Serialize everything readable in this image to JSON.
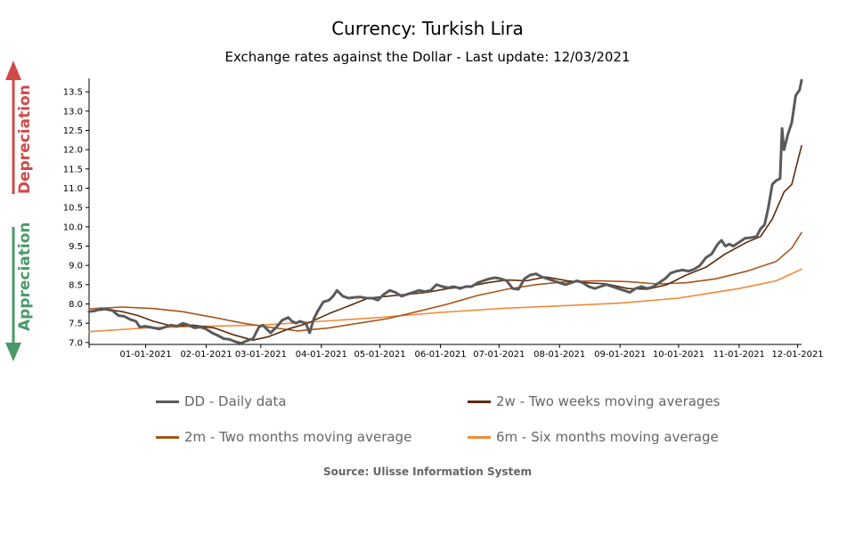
{
  "chart_data": {
    "type": "line",
    "title": "Currency: Turkish Lira",
    "subtitle": "Exchange rates against the Dollar - Last update: 12/03/2021",
    "xlabel": "",
    "ylabel": "",
    "ylim": [
      6.95,
      13.85
    ],
    "y_ticks": [
      "7.0",
      "7.5",
      "8.0",
      "8.5",
      "9.0",
      "9.5",
      "10.0",
      "10.5",
      "11.0",
      "11.5",
      "12.0",
      "12.5",
      "13.0",
      "13.5"
    ],
    "x_ticks": [
      "01-01-2021",
      "02-01-2021",
      "03-01-2021",
      "04-01-2021",
      "05-01-2021",
      "06-01-2021",
      "07-01-2021",
      "08-01-2021",
      "09-01-2021",
      "10-01-2021",
      "11-01-2021",
      "12-01-2021"
    ],
    "x_range": [
      "2020-12-03",
      "2021-12-03"
    ],
    "grid": false,
    "legend_position": "bottom",
    "series": [
      {
        "name": "DD - Daily data",
        "color": "#5a5a5a",
        "points": [
          [
            "2020-12-03",
            7.8
          ],
          [
            "2020-12-06",
            7.82
          ],
          [
            "2020-12-09",
            7.88
          ],
          [
            "2020-12-12",
            7.86
          ],
          [
            "2020-12-15",
            7.83
          ],
          [
            "2020-12-18",
            7.7
          ],
          [
            "2020-12-21",
            7.68
          ],
          [
            "2020-12-24",
            7.6
          ],
          [
            "2020-12-27",
            7.55
          ],
          [
            "2020-12-29",
            7.4
          ],
          [
            "2021-01-01",
            7.42
          ],
          [
            "2021-01-05",
            7.38
          ],
          [
            "2021-01-08",
            7.35
          ],
          [
            "2021-01-11",
            7.4
          ],
          [
            "2021-01-14",
            7.45
          ],
          [
            "2021-01-17",
            7.42
          ],
          [
            "2021-01-20",
            7.5
          ],
          [
            "2021-01-23",
            7.45
          ],
          [
            "2021-01-26",
            7.38
          ],
          [
            "2021-01-29",
            7.4
          ],
          [
            "2021-02-01",
            7.35
          ],
          [
            "2021-02-04",
            7.25
          ],
          [
            "2021-02-07",
            7.18
          ],
          [
            "2021-02-10",
            7.1
          ],
          [
            "2021-02-13",
            7.08
          ],
          [
            "2021-02-16",
            7.02
          ],
          [
            "2021-02-19",
            6.98
          ],
          [
            "2021-02-22",
            7.05
          ],
          [
            "2021-02-25",
            7.1
          ],
          [
            "2021-02-28",
            7.4
          ],
          [
            "2021-03-02",
            7.45
          ],
          [
            "2021-03-04",
            7.35
          ],
          [
            "2021-03-06",
            7.25
          ],
          [
            "2021-03-09",
            7.4
          ],
          [
            "2021-03-12",
            7.58
          ],
          [
            "2021-03-15",
            7.65
          ],
          [
            "2021-03-17",
            7.55
          ],
          [
            "2021-03-19",
            7.5
          ],
          [
            "2021-03-21",
            7.55
          ],
          [
            "2021-03-24",
            7.5
          ],
          [
            "2021-03-26",
            7.25
          ],
          [
            "2021-03-28",
            7.6
          ],
          [
            "2021-03-30",
            7.8
          ],
          [
            "2021-04-02",
            8.05
          ],
          [
            "2021-04-05",
            8.1
          ],
          [
            "2021-04-07",
            8.2
          ],
          [
            "2021-04-09",
            8.35
          ],
          [
            "2021-04-12",
            8.2
          ],
          [
            "2021-04-15",
            8.15
          ],
          [
            "2021-04-18",
            8.17
          ],
          [
            "2021-04-21",
            8.18
          ],
          [
            "2021-04-24",
            8.15
          ],
          [
            "2021-04-27",
            8.15
          ],
          [
            "2021-04-30",
            8.1
          ],
          [
            "2021-05-03",
            8.25
          ],
          [
            "2021-05-06",
            8.35
          ],
          [
            "2021-05-09",
            8.3
          ],
          [
            "2021-05-12",
            8.2
          ],
          [
            "2021-05-15",
            8.25
          ],
          [
            "2021-05-18",
            8.3
          ],
          [
            "2021-05-21",
            8.35
          ],
          [
            "2021-05-24",
            8.32
          ],
          [
            "2021-05-27",
            8.35
          ],
          [
            "2021-05-30",
            8.5
          ],
          [
            "2021-06-02",
            8.45
          ],
          [
            "2021-06-05",
            8.42
          ],
          [
            "2021-06-08",
            8.45
          ],
          [
            "2021-06-11",
            8.4
          ],
          [
            "2021-06-14",
            8.45
          ],
          [
            "2021-06-17",
            8.45
          ],
          [
            "2021-06-20",
            8.55
          ],
          [
            "2021-06-23",
            8.6
          ],
          [
            "2021-06-26",
            8.65
          ],
          [
            "2021-06-29",
            8.68
          ],
          [
            "2021-07-02",
            8.65
          ],
          [
            "2021-07-05",
            8.6
          ],
          [
            "2021-07-08",
            8.4
          ],
          [
            "2021-07-11",
            8.38
          ],
          [
            "2021-07-14",
            8.65
          ],
          [
            "2021-07-17",
            8.75
          ],
          [
            "2021-07-20",
            8.78
          ],
          [
            "2021-07-23",
            8.7
          ],
          [
            "2021-07-26",
            8.65
          ],
          [
            "2021-07-29",
            8.6
          ],
          [
            "2021-08-01",
            8.55
          ],
          [
            "2021-08-04",
            8.5
          ],
          [
            "2021-08-07",
            8.55
          ],
          [
            "2021-08-10",
            8.6
          ],
          [
            "2021-08-13",
            8.55
          ],
          [
            "2021-08-16",
            8.45
          ],
          [
            "2021-08-19",
            8.4
          ],
          [
            "2021-08-22",
            8.45
          ],
          [
            "2021-08-25",
            8.5
          ],
          [
            "2021-08-28",
            8.45
          ],
          [
            "2021-08-31",
            8.4
          ],
          [
            "2021-09-03",
            8.35
          ],
          [
            "2021-09-06",
            8.3
          ],
          [
            "2021-09-09",
            8.4
          ],
          [
            "2021-09-12",
            8.45
          ],
          [
            "2021-09-15",
            8.4
          ],
          [
            "2021-09-18",
            8.45
          ],
          [
            "2021-09-21",
            8.55
          ],
          [
            "2021-09-24",
            8.65
          ],
          [
            "2021-09-27",
            8.8
          ],
          [
            "2021-09-30",
            8.85
          ],
          [
            "2021-10-03",
            8.88
          ],
          [
            "2021-10-06",
            8.85
          ],
          [
            "2021-10-09",
            8.9
          ],
          [
            "2021-10-12",
            9.0
          ],
          [
            "2021-10-15",
            9.2
          ],
          [
            "2021-10-18",
            9.3
          ],
          [
            "2021-10-21",
            9.55
          ],
          [
            "2021-10-23",
            9.65
          ],
          [
            "2021-10-25",
            9.5
          ],
          [
            "2021-10-27",
            9.55
          ],
          [
            "2021-10-29",
            9.5
          ],
          [
            "2021-11-01",
            9.6
          ],
          [
            "2021-11-04",
            9.7
          ],
          [
            "2021-11-07",
            9.72
          ],
          [
            "2021-11-10",
            9.75
          ],
          [
            "2021-11-12",
            9.95
          ],
          [
            "2021-11-14",
            10.05
          ],
          [
            "2021-11-16",
            10.5
          ],
          [
            "2021-11-18",
            11.1
          ],
          [
            "2021-11-20",
            11.2
          ],
          [
            "2021-11-22",
            11.25
          ],
          [
            "2021-11-23",
            12.55
          ],
          [
            "2021-11-24",
            12.0
          ],
          [
            "2021-11-26",
            12.4
          ],
          [
            "2021-11-28",
            12.7
          ],
          [
            "2021-11-30",
            13.4
          ],
          [
            "2021-12-02",
            13.55
          ],
          [
            "2021-12-03",
            13.8
          ]
        ]
      },
      {
        "name": "2w - Two weeks moving averages",
        "color": "#5c2a0a",
        "points": [
          [
            "2020-12-03",
            7.8
          ],
          [
            "2020-12-12",
            7.86
          ],
          [
            "2020-12-20",
            7.8
          ],
          [
            "2020-12-28",
            7.7
          ],
          [
            "2021-01-05",
            7.55
          ],
          [
            "2021-01-15",
            7.42
          ],
          [
            "2021-01-25",
            7.45
          ],
          [
            "2021-02-05",
            7.38
          ],
          [
            "2021-02-15",
            7.2
          ],
          [
            "2021-02-25",
            7.06
          ],
          [
            "2021-03-05",
            7.15
          ],
          [
            "2021-03-15",
            7.35
          ],
          [
            "2021-03-25",
            7.5
          ],
          [
            "2021-04-05",
            7.75
          ],
          [
            "2021-04-15",
            7.95
          ],
          [
            "2021-04-25",
            8.15
          ],
          [
            "2021-05-05",
            8.2
          ],
          [
            "2021-05-15",
            8.25
          ],
          [
            "2021-05-25",
            8.3
          ],
          [
            "2021-06-05",
            8.4
          ],
          [
            "2021-06-15",
            8.45
          ],
          [
            "2021-06-25",
            8.55
          ],
          [
            "2021-07-05",
            8.62
          ],
          [
            "2021-07-15",
            8.6
          ],
          [
            "2021-07-25",
            8.7
          ],
          [
            "2021-08-05",
            8.6
          ],
          [
            "2021-08-15",
            8.55
          ],
          [
            "2021-08-25",
            8.52
          ],
          [
            "2021-09-05",
            8.4
          ],
          [
            "2021-09-15",
            8.38
          ],
          [
            "2021-09-25",
            8.5
          ],
          [
            "2021-10-05",
            8.75
          ],
          [
            "2021-10-15",
            8.95
          ],
          [
            "2021-10-25",
            9.3
          ],
          [
            "2021-11-05",
            9.6
          ],
          [
            "2021-11-12",
            9.75
          ],
          [
            "2021-11-18",
            10.2
          ],
          [
            "2021-11-24",
            10.9
          ],
          [
            "2021-11-28",
            11.1
          ],
          [
            "2021-12-03",
            12.1
          ]
        ]
      },
      {
        "name": "2m - Two months moving average",
        "color": "#a8541a",
        "points": [
          [
            "2020-12-03",
            7.87
          ],
          [
            "2020-12-20",
            7.92
          ],
          [
            "2021-01-05",
            7.88
          ],
          [
            "2021-01-20",
            7.8
          ],
          [
            "2021-02-05",
            7.65
          ],
          [
            "2021-02-20",
            7.5
          ],
          [
            "2021-03-05",
            7.4
          ],
          [
            "2021-03-20",
            7.3
          ],
          [
            "2021-04-05",
            7.38
          ],
          [
            "2021-04-20",
            7.5
          ],
          [
            "2021-05-05",
            7.62
          ],
          [
            "2021-05-20",
            7.8
          ],
          [
            "2021-06-05",
            8.0
          ],
          [
            "2021-06-20",
            8.22
          ],
          [
            "2021-07-05",
            8.38
          ],
          [
            "2021-07-20",
            8.5
          ],
          [
            "2021-08-05",
            8.58
          ],
          [
            "2021-08-20",
            8.6
          ],
          [
            "2021-09-05",
            8.58
          ],
          [
            "2021-09-20",
            8.52
          ],
          [
            "2021-10-05",
            8.55
          ],
          [
            "2021-10-20",
            8.65
          ],
          [
            "2021-11-05",
            8.85
          ],
          [
            "2021-11-20",
            9.1
          ],
          [
            "2021-11-28",
            9.45
          ],
          [
            "2021-12-03",
            9.85
          ]
        ]
      },
      {
        "name": "6m - Six months moving average",
        "color": "#f08a3a",
        "points": [
          [
            "2020-12-03",
            7.28
          ],
          [
            "2021-01-01",
            7.38
          ],
          [
            "2021-02-01",
            7.42
          ],
          [
            "2021-03-01",
            7.45
          ],
          [
            "2021-04-01",
            7.55
          ],
          [
            "2021-05-01",
            7.65
          ],
          [
            "2021-06-01",
            7.78
          ],
          [
            "2021-07-01",
            7.88
          ],
          [
            "2021-08-01",
            7.95
          ],
          [
            "2021-09-01",
            8.02
          ],
          [
            "2021-10-01",
            8.15
          ],
          [
            "2021-11-01",
            8.4
          ],
          [
            "2021-11-20",
            8.6
          ],
          [
            "2021-12-03",
            8.9
          ]
        ]
      }
    ],
    "annotations": {
      "up_label": "Depreciation",
      "up_color": "#d04a4a",
      "down_label": "Appreciation",
      "down_color": "#4a9a6a"
    },
    "source": "Source: Ulisse Information System"
  }
}
